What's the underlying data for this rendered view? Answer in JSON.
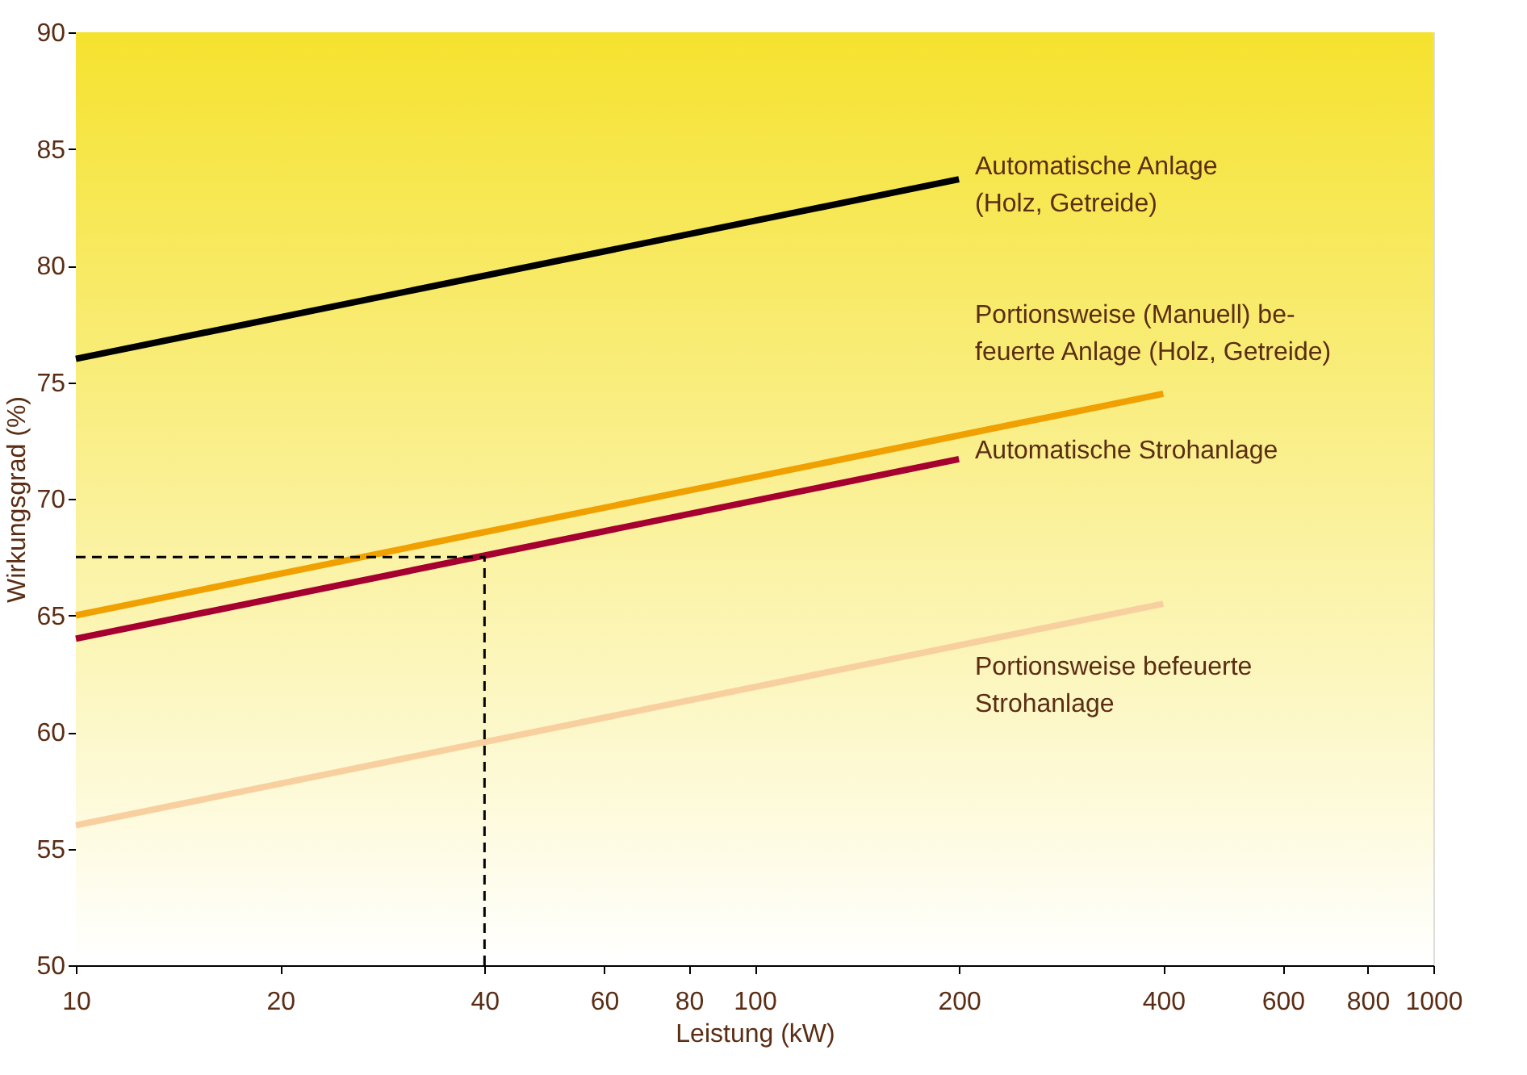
{
  "chart_data": {
    "type": "line",
    "xlabel": "Leistung (kW)",
    "ylabel": "Wirkungsgrad (%)",
    "log": "x",
    "xlim": [
      10,
      1000
    ],
    "xticks": [
      10,
      20,
      40,
      60,
      80,
      100,
      200,
      400,
      600,
      800,
      {
        "value": 1000,
        "label": "1000"
      }
    ],
    "ylim": [
      50,
      90
    ],
    "yticks": [
      50,
      55,
      60,
      65,
      70,
      75,
      80,
      85,
      90
    ],
    "line_style": "solid",
    "marker": "none",
    "series": [
      {
        "name": "Automatische Anlage\n(Holz, Getreide)",
        "color": "#000000",
        "x": [
          10,
          200
        ],
        "values": [
          76.0,
          83.7
        ]
      },
      {
        "name": "Portionsweise (Manuell) be-\nfeuerte Anlage (Holz, Getreide)",
        "color": "#f0a000",
        "x": [
          10,
          400
        ],
        "values": [
          65.0,
          74.5
        ]
      },
      {
        "name": "Automatische Strohanlage",
        "color": "#a50030",
        "x": [
          10,
          200
        ],
        "values": [
          64.0,
          71.7
        ]
      },
      {
        "name": "Portionsweise befeuerte\nStrohanlage",
        "color": "#f8d0a0",
        "x": [
          10,
          400
        ],
        "values": [
          56.0,
          65.5
        ]
      },
      {
        "color": "#000000",
        "line_style": "dashed",
        "x": [
          10,
          40,
          40
        ],
        "values": [
          67.5,
          67.5,
          50
        ]
      }
    ]
  }
}
